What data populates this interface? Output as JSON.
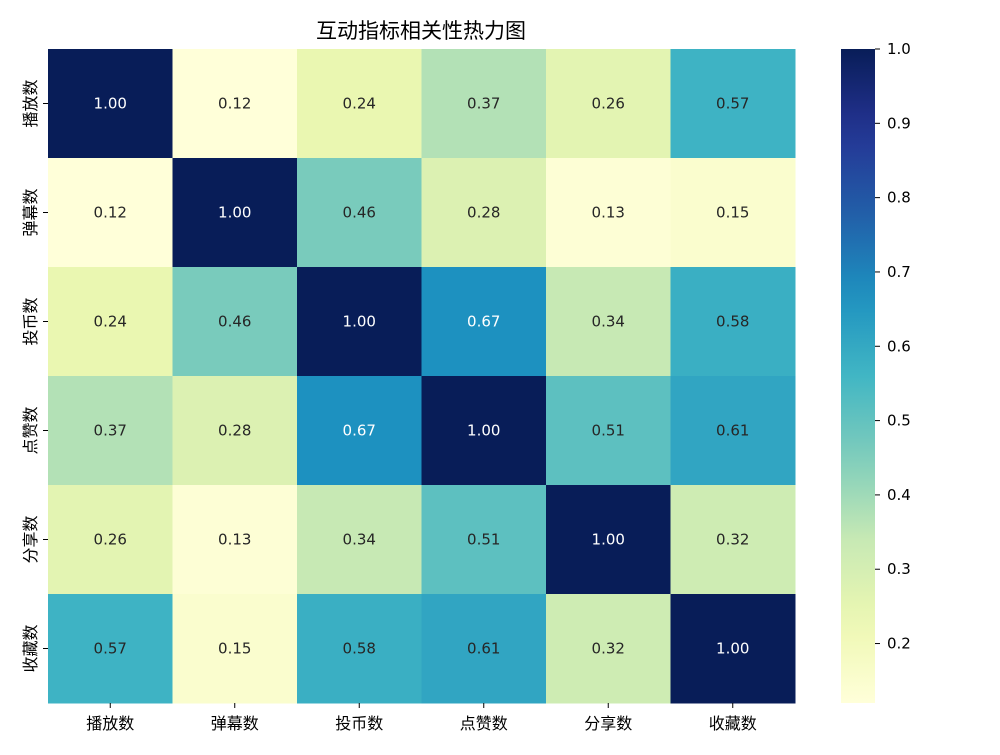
{
  "chart_data": {
    "type": "heatmap",
    "title": "互动指标相关性热力图",
    "xlabel": "",
    "ylabel": "",
    "x_categories": [
      "播放数",
      "弹幕数",
      "投币数",
      "点赞数",
      "分享数",
      "收藏数"
    ],
    "y_categories": [
      "播放数",
      "弹幕数",
      "投币数",
      "点赞数",
      "分享数",
      "收藏数"
    ],
    "matrix": [
      [
        1.0,
        0.12,
        0.24,
        0.37,
        0.26,
        0.57
      ],
      [
        0.12,
        1.0,
        0.46,
        0.28,
        0.13,
        0.15
      ],
      [
        0.24,
        0.46,
        1.0,
        0.67,
        0.34,
        0.58
      ],
      [
        0.37,
        0.28,
        0.67,
        1.0,
        0.51,
        0.61
      ],
      [
        0.26,
        0.13,
        0.34,
        0.51,
        1.0,
        0.32
      ],
      [
        0.57,
        0.15,
        0.58,
        0.61,
        0.32,
        1.0
      ]
    ],
    "value_format": "0.00",
    "colormap": "YlGnBu",
    "colorbar": {
      "range": [
        0.12,
        1.0
      ],
      "ticks": [
        0.2,
        0.3,
        0.4,
        0.5,
        0.6,
        0.7,
        0.8,
        0.9,
        1.0
      ],
      "tick_labels": [
        "0.2",
        "0.3",
        "0.4",
        "0.5",
        "0.6",
        "0.7",
        "0.8",
        "0.9",
        "1.0"
      ]
    },
    "grid": false,
    "legend": "colorbar-right"
  }
}
